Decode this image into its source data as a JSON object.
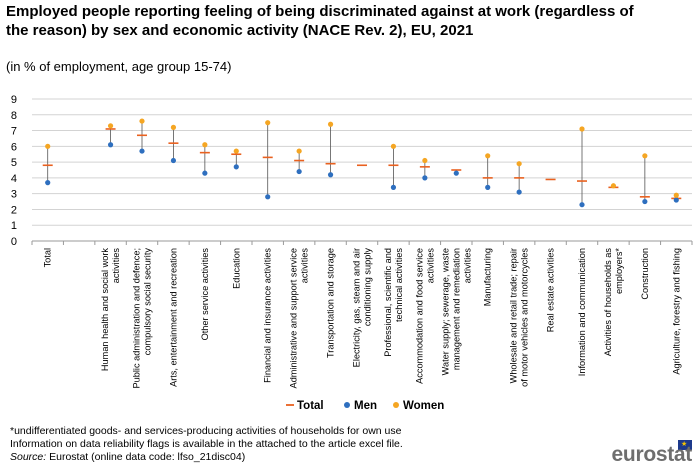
{
  "title": "Employed people reporting feeling of being discriminated against at work (regardless of the reason) by sex and economic activity (NACE Rev. 2), EU, 2021",
  "subtitle": "(in % of employment,  age group 15-74)",
  "notes": [
    "*undifferentiated  goods- and services-producing activities of households for own use",
    "Information  on data reliability flags is available in the attached to the article excel file."
  ],
  "source": {
    "label": "Source:",
    "text": "Eurostat (online data code: lfso_21disc04)"
  },
  "logo": "eurostat",
  "colors": {
    "total": "#e9611f",
    "men": "#2e6fbf",
    "women": "#f5a623",
    "range": "#555555",
    "grid": "#d3d3d3"
  },
  "chart_data": {
    "type": "scatter",
    "ylim": [
      0,
      9
    ],
    "yticks": [
      "0",
      "1",
      "2",
      "3",
      "4",
      "5",
      "6",
      "7",
      "8",
      "9"
    ],
    "grid": true,
    "legend": "bottom",
    "categories": [
      "Total",
      "",
      "Human health and social work activities",
      "Public administration and defence; compulsory social security",
      "Arts, entertainment and recreation",
      "Other service activities",
      "Education",
      "Financial and insurance activities",
      "Administrative and support service activities",
      "Transportation and storage",
      "Electricity, gas, steam and air conditioning supply",
      "Professional, scientific and technical activities",
      "Accommodation and food service activities",
      "Water supply; sewerage, waste management and remediation activities",
      "Manufacturing",
      "Wholesale and retail trade; repair of motor vehicles and motorcycles",
      "Real estate activities",
      "Information and communication",
      "Activities of households as employers*",
      "Construction",
      "Agriculture, forestry and fishing"
    ],
    "series": [
      {
        "name": "Total",
        "values": [
          4.8,
          null,
          7.1,
          6.7,
          6.2,
          5.6,
          5.5,
          5.3,
          5.1,
          4.9,
          4.8,
          4.8,
          4.7,
          4.5,
          4.0,
          4.0,
          3.9,
          3.8,
          3.4,
          2.8,
          2.7
        ]
      },
      {
        "name": "Men",
        "values": [
          3.7,
          null,
          6.1,
          5.7,
          5.1,
          4.3,
          4.7,
          2.8,
          4.4,
          4.2,
          null,
          3.4,
          4.0,
          4.3,
          3.4,
          3.1,
          null,
          2.3,
          null,
          2.5,
          2.6
        ]
      },
      {
        "name": "Women",
        "values": [
          6.0,
          null,
          7.3,
          7.6,
          7.2,
          6.1,
          5.7,
          7.5,
          5.7,
          7.4,
          null,
          6.0,
          5.1,
          null,
          5.4,
          4.9,
          null,
          7.1,
          3.5,
          5.4,
          2.9
        ]
      }
    ]
  }
}
